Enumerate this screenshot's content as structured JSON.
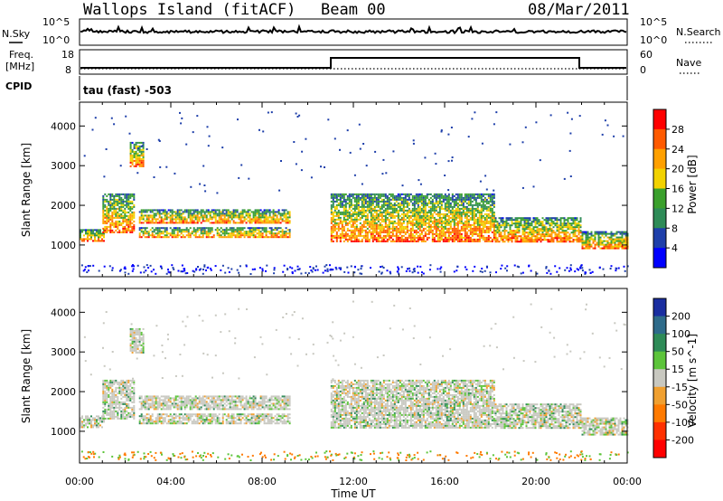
{
  "header": {
    "title": "Wallops Island (fitACF)",
    "beam": "Beam 00",
    "date": "08/Mar/2011"
  },
  "params": {
    "nsky_label": "N.Sky",
    "nsearch_label": "N.Search",
    "log_top_label": "10^5",
    "log_bottom_label": "10^0",
    "freq_label_line1": "Freq.",
    "freq_label_line2": "[MHz]",
    "freq_ticks": [
      "18",
      "8"
    ],
    "nave_label": "Nave",
    "nave_ticks": [
      "60",
      "0"
    ],
    "cpid_label": "CPID",
    "cpid_text": "tau (fast) -503"
  },
  "chart_data": [
    {
      "type": "heatmap",
      "name": "power",
      "ylabel": "Slant Range [km]",
      "yticks": [
        1000,
        2000,
        3000,
        4000
      ],
      "ylim": [
        200,
        4600
      ],
      "xlabel": "Time UT",
      "xticks": [
        "00:00",
        "04:00",
        "08:00",
        "12:00",
        "16:00",
        "20:00",
        "00:00"
      ],
      "xlim_hours": [
        0,
        24
      ],
      "colorbar": {
        "label": "Power [dB]",
        "ticks": [
          "28",
          "24",
          "20",
          "16",
          "12",
          "8",
          "4"
        ],
        "colors": [
          "#ff0000",
          "#ff5a00",
          "#ffa000",
          "#f2d200",
          "#3aa02c",
          "#2e8b57",
          "#1e3faa",
          "#0000ff"
        ]
      }
    },
    {
      "type": "heatmap",
      "name": "velocity",
      "ylabel": "Slant Range [km]",
      "yticks": [
        1000,
        2000,
        3000,
        4000
      ],
      "ylim": [
        200,
        4600
      ],
      "xlabel": "Time UT",
      "xticks": [
        "00:00",
        "04:00",
        "08:00",
        "12:00",
        "16:00",
        "20:00",
        "00:00"
      ],
      "xlim_hours": [
        0,
        24
      ],
      "colorbar": {
        "label": "Velocity [m s^-1]",
        "ticks": [
          "200",
          "100",
          "50",
          "15",
          "-15",
          "-50",
          "-100",
          "-200"
        ],
        "colors": [
          "#1a2ea0",
          "#2e6b8a",
          "#2e8b57",
          "#5cc43a",
          "#c8c8c0",
          "#f0a030",
          "#ff7a00",
          "#ff3000",
          "#ff0000"
        ]
      }
    }
  ],
  "echo_bands": [
    {
      "t0": 0.0,
      "t1": 1.1,
      "r0": 1100,
      "r1": 1400
    },
    {
      "t0": 1.0,
      "t1": 2.4,
      "r0": 1300,
      "r1": 2300
    },
    {
      "t0": 2.2,
      "t1": 2.8,
      "r0": 3000,
      "r1": 3600
    },
    {
      "t0": 2.6,
      "t1": 9.2,
      "r0": 1550,
      "r1": 1900
    },
    {
      "t0": 2.6,
      "t1": 9.2,
      "r0": 1200,
      "r1": 1450
    },
    {
      "t0": 11.0,
      "t1": 18.2,
      "r0": 1100,
      "r1": 2300
    },
    {
      "t0": 18.2,
      "t1": 22.0,
      "r0": 1100,
      "r1": 1700
    },
    {
      "t0": 22.0,
      "t1": 24.0,
      "r0": 900,
      "r1": 1350
    }
  ]
}
